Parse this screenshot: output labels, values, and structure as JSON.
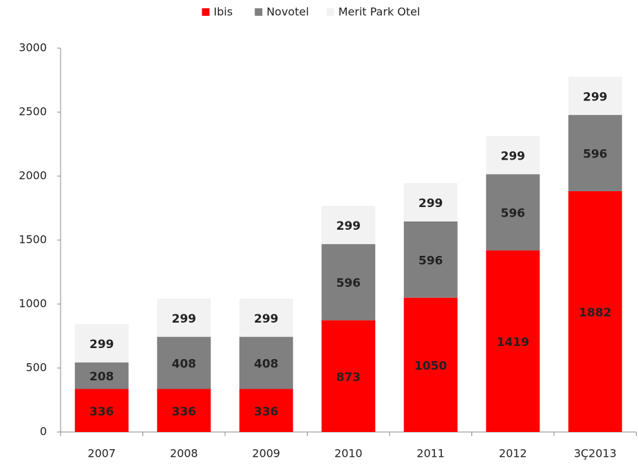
{
  "chart_data": {
    "type": "stacked_bar",
    "categories": [
      "2007",
      "2008",
      "2009",
      "2010",
      "2011",
      "2012",
      "3Ç2013"
    ],
    "series": [
      {
        "name": "Ibis",
        "color": "#ff0000",
        "values": [
          336,
          336,
          336,
          873,
          1050,
          1419,
          1882
        ]
      },
      {
        "name": "Novotel",
        "color": "#808080",
        "values": [
          208,
          408,
          408,
          596,
          596,
          596,
          596
        ]
      },
      {
        "name": "Merit Park Otel",
        "color": "#f2f2f2",
        "values": [
          299,
          299,
          299,
          299,
          299,
          299,
          299
        ]
      }
    ],
    "ylim": [
      0,
      3000
    ],
    "yticks": [
      0,
      500,
      1000,
      1500,
      2000,
      2500,
      3000
    ],
    "grid": false,
    "legend": "top"
  }
}
